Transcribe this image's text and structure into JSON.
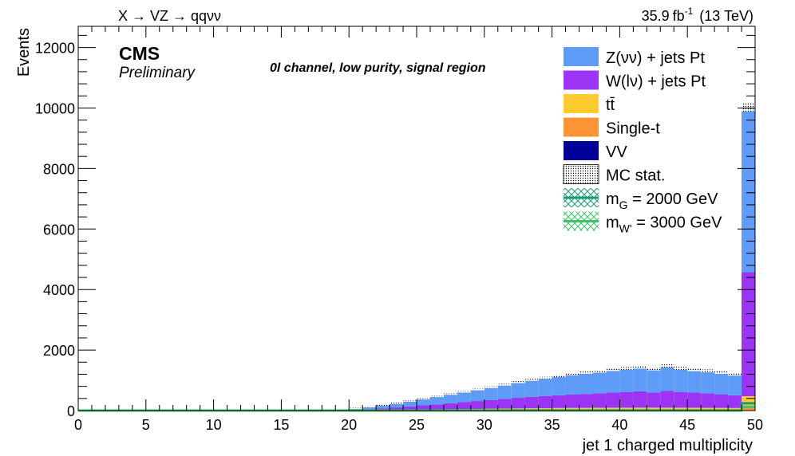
{
  "header": {
    "process": "X → VZ → qqνν",
    "lumi_value": "35.9",
    "lumi_unit_base": "fb",
    "lumi_unit_exp": "-1",
    "energy": "(13 TeV)"
  },
  "cms_label": "CMS",
  "preliminary_label": "Preliminary",
  "channel_label": "0l channel, low purity, signal region",
  "chart_data": {
    "type": "bar",
    "stacked": true,
    "xlabel": "jet 1 charged multiplicity",
    "ylabel": "Events",
    "xlim": [
      0,
      50
    ],
    "ylim": [
      0,
      12700
    ],
    "bin_width": 1,
    "x_ticks": [
      0,
      5,
      10,
      15,
      20,
      25,
      30,
      35,
      40,
      45,
      50
    ],
    "y_ticks": [
      0,
      2000,
      4000,
      6000,
      8000,
      10000,
      12000
    ],
    "x_tick_labels": [
      "0",
      "5",
      "10",
      "15",
      "20",
      "25",
      "30",
      "35",
      "40",
      "45",
      "50"
    ],
    "y_tick_labels": [
      "0",
      "2000",
      "4000",
      "6000",
      "8000",
      "10000",
      "12000"
    ],
    "legend_position": "top-right",
    "colors": {
      "zvv": "#5e9cf7",
      "wlv": "#9b34f4",
      "ttbar": "#fdcb2e",
      "singlet": "#fd9434",
      "vv": "#000099",
      "sig1": "#1a9a7a",
      "sig2": "#3fc46a"
    },
    "bin_lows": [
      0,
      1,
      2,
      3,
      4,
      5,
      6,
      7,
      8,
      9,
      10,
      11,
      12,
      13,
      14,
      15,
      16,
      17,
      18,
      19,
      20,
      21,
      22,
      23,
      24,
      25,
      26,
      27,
      28,
      29,
      30,
      31,
      32,
      33,
      34,
      35,
      36,
      37,
      38,
      39,
      40,
      41,
      42,
      43,
      44,
      45,
      46,
      47,
      48,
      49
    ],
    "series": [
      {
        "key": "vv",
        "name": "VV",
        "values": [
          0,
          0,
          0,
          0,
          0,
          0,
          0,
          0,
          0,
          0,
          0,
          0,
          0,
          0,
          0,
          0,
          0,
          0,
          0,
          0,
          1,
          1,
          2,
          2,
          3,
          4,
          4,
          5,
          5,
          6,
          7,
          7,
          7,
          8,
          8,
          9,
          9,
          9,
          10,
          10,
          10,
          10,
          10,
          10,
          10,
          9,
          9,
          9,
          8,
          14
        ]
      },
      {
        "key": "singlet",
        "name": "Single-t",
        "values": [
          0,
          0,
          0,
          0,
          0,
          0,
          0,
          0,
          0,
          0,
          0,
          0,
          0,
          0,
          0,
          0,
          0,
          0,
          0,
          1,
          2,
          3,
          5,
          6,
          8,
          10,
          12,
          14,
          16,
          18,
          20,
          22,
          24,
          26,
          28,
          30,
          31,
          32,
          33,
          34,
          34,
          35,
          35,
          35,
          34,
          34,
          33,
          32,
          31,
          160
        ]
      },
      {
        "key": "ttbar",
        "name": "tt̄",
        "values": [
          0,
          0,
          0,
          0,
          0,
          0,
          0,
          0,
          0,
          0,
          0,
          0,
          0,
          0,
          0,
          0,
          0,
          0,
          1,
          2,
          4,
          6,
          8,
          11,
          14,
          17,
          20,
          24,
          27,
          30,
          33,
          36,
          39,
          41,
          43,
          45,
          47,
          48,
          49,
          50,
          50,
          51,
          51,
          50,
          50,
          49,
          48,
          46,
          45,
          300
        ]
      },
      {
        "key": "wlv",
        "name": "W(lν) + jets Pt",
        "values": [
          0,
          0,
          0,
          0,
          0,
          0,
          0,
          0,
          0,
          0,
          0,
          0,
          0,
          0,
          0,
          0,
          0,
          1,
          4,
          12,
          25,
          40,
          60,
          85,
          110,
          140,
          170,
          200,
          230,
          260,
          290,
          320,
          350,
          380,
          400,
          420,
          440,
          460,
          480,
          500,
          520,
          540,
          500,
          560,
          520,
          500,
          480,
          450,
          420,
          4100
        ]
      },
      {
        "key": "zvv",
        "name": "Z(νν) + jets Pt",
        "values": [
          0,
          0,
          0,
          0,
          0,
          0,
          0,
          0,
          0,
          0,
          0,
          0,
          0,
          0,
          0,
          0,
          0,
          2,
          10,
          25,
          50,
          80,
          110,
          140,
          180,
          220,
          260,
          300,
          340,
          380,
          420,
          470,
          520,
          560,
          600,
          640,
          680,
          700,
          720,
          760,
          780,
          800,
          780,
          820,
          780,
          760,
          740,
          720,
          700,
          5450
        ]
      }
    ],
    "mc_stat_band": {
      "name": "MC stat.",
      "values": [
        0,
        0,
        0,
        0,
        0,
        0,
        0,
        0,
        0,
        0,
        0,
        0,
        0,
        0,
        0,
        0,
        0,
        3,
        15,
        40,
        82,
        130,
        185,
        244,
        315,
        391,
        466,
        543,
        618,
        695,
        770,
        855,
        940,
        1015,
        1079,
        1144,
        1207,
        1249,
        1292,
        1354,
        1394,
        1436,
        1376,
        1475,
        1394,
        1352,
        1310,
        1257,
        1204,
        10024
      ],
      "band": [
        0,
        0,
        0,
        0,
        0,
        0,
        0,
        0,
        0,
        0,
        0,
        0,
        0,
        0,
        0,
        0,
        0,
        2,
        4,
        6,
        8,
        10,
        12,
        14,
        16,
        18,
        20,
        22,
        24,
        26,
        28,
        30,
        32,
        34,
        36,
        38,
        40,
        42,
        44,
        46,
        48,
        50,
        50,
        52,
        50,
        50,
        50,
        48,
        48,
        140
      ]
    },
    "signal_series": [
      {
        "key": "sig1",
        "name": "m_G = 2000 GeV",
        "values": [
          0,
          0,
          0,
          0,
          0,
          0,
          0,
          0,
          0,
          0,
          0,
          0,
          0,
          0,
          0,
          0,
          0,
          0,
          0,
          0,
          0,
          0,
          0,
          0,
          1,
          1,
          2,
          2,
          3,
          3,
          4,
          4,
          5,
          5,
          6,
          6,
          6,
          7,
          7,
          7,
          7,
          7,
          7,
          7,
          6,
          6,
          6,
          5,
          5,
          240
        ]
      },
      {
        "key": "sig2",
        "name": "m_W' = 3000 GeV",
        "values": [
          0,
          0,
          0,
          0,
          0,
          0,
          0,
          0,
          0,
          0,
          0,
          0,
          0,
          0,
          0,
          0,
          0,
          0,
          0,
          0,
          0,
          0,
          0,
          0,
          0,
          1,
          1,
          1,
          2,
          2,
          2,
          3,
          3,
          3,
          3,
          4,
          4,
          4,
          4,
          4,
          4,
          4,
          4,
          4,
          4,
          4,
          3,
          3,
          3,
          120
        ]
      }
    ],
    "legend_entries": [
      {
        "key": "zvv",
        "label_main": "Z(νν) + jets Pt",
        "label_sub": "",
        "label_tail": ""
      },
      {
        "key": "wlv",
        "label_main": "W(lν) + jets Pt",
        "label_sub": "",
        "label_tail": ""
      },
      {
        "key": "ttbar",
        "label_main": "tt̄",
        "label_sub": "",
        "label_tail": ""
      },
      {
        "key": "singlet",
        "label_main": "Single-t",
        "label_sub": "",
        "label_tail": ""
      },
      {
        "key": "vv",
        "label_main": "VV",
        "label_sub": "",
        "label_tail": ""
      },
      {
        "key": "mcstat",
        "label_main": "MC stat.",
        "label_sub": "",
        "label_tail": ""
      },
      {
        "key": "sig1",
        "label_main": "m",
        "label_sub": "G",
        "label_tail": " = 2000 GeV"
      },
      {
        "key": "sig2",
        "label_main": "m",
        "label_sub": "W'",
        "label_tail": " = 3000 GeV"
      }
    ]
  }
}
